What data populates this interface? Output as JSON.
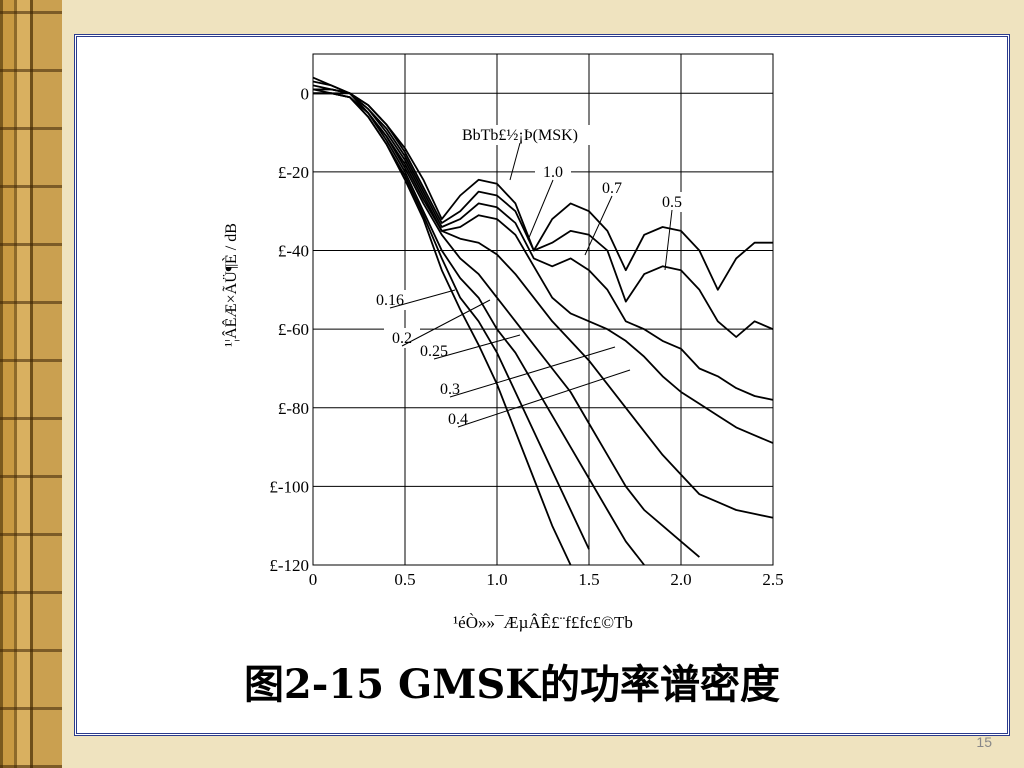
{
  "slide": {
    "caption": "图2-15 GMSK的功率谱密度",
    "page_number": "15"
  },
  "chart_data": {
    "type": "line",
    "y_label": "¹¦ÂÊÆ×ÃÜ¶È / dB",
    "x_label": "¹éÒ»»¯ÆµÂÊ£¨f£­fc£©Tb",
    "color": "#000000",
    "grid": true,
    "xlim": [
      0,
      2.5
    ],
    "ylim": [
      -120,
      10
    ],
    "xticks": [
      0,
      0.5,
      {
        "value": 1,
        "label": "1.0"
      },
      1.5,
      {
        "value": 2,
        "label": "2.0"
      },
      2.5
    ],
    "yticks": [
      0,
      {
        "value": -20,
        "label": "£-20"
      },
      {
        "value": -40,
        "label": "£-40"
      },
      {
        "value": -60,
        "label": "£-60"
      },
      {
        "value": -80,
        "label": "£-80"
      },
      {
        "value": -100,
        "label": "£-100"
      },
      {
        "value": -120,
        "label": "£-120"
      }
    ],
    "x": [
      0,
      0.1,
      0.2,
      0.3,
      0.4,
      0.5,
      0.6,
      0.7,
      0.8,
      0.9,
      1.0,
      1.1,
      1.2,
      1.3,
      1.4,
      1.5,
      1.6,
      1.7,
      1.8,
      1.9,
      2.0,
      2.1,
      2.2,
      2.3,
      2.4,
      2.5
    ],
    "series": [
      {
        "name": "BbTb£½¡Þ(MSK)",
        "values": [
          4,
          2,
          0,
          -3,
          -8,
          -14,
          -22,
          -32,
          -26,
          -22,
          -23,
          -28,
          -40,
          -32,
          -28,
          -30,
          -35,
          -45,
          -36,
          -34,
          -35,
          -40,
          -50,
          -42,
          -38,
          -38
        ]
      },
      {
        "name": "1.0",
        "values": [
          3,
          2,
          0,
          -3,
          -8,
          -15,
          -24,
          -33,
          -30,
          -25,
          -26,
          -30,
          -40,
          -38,
          -35,
          -36,
          -40,
          -53,
          -46,
          -44,
          -45,
          -50,
          -58,
          -62,
          -58,
          -60
        ]
      },
      {
        "name": "0.7",
        "values": [
          2,
          1,
          0,
          -4,
          -9,
          -16,
          -25,
          -34,
          -32,
          -28,
          -29,
          -33,
          -42,
          -44,
          -42,
          -45,
          -50,
          -58,
          -60,
          -63,
          -65,
          -70,
          -72,
          -75,
          -77,
          -78
        ]
      },
      {
        "name": "0.5",
        "values": [
          1,
          1,
          0,
          -4,
          -10,
          -17,
          -26,
          -35,
          -34,
          -31,
          -32,
          -36,
          -44,
          -52,
          -56,
          -58,
          -60,
          -63,
          -67,
          -72,
          -76,
          -79,
          -82,
          -85,
          -87,
          -89
        ]
      },
      {
        "name": "0.4",
        "values": [
          1,
          1,
          0,
          -5,
          -11,
          -18,
          -27,
          -35,
          -37,
          -38,
          -41,
          -46,
          -52,
          -58,
          -63,
          -68,
          -74,
          -80,
          -86,
          -92,
          -97,
          -102,
          -104,
          -106,
          -107,
          -108
        ]
      },
      {
        "name": "0.3",
        "values": [
          1,
          0,
          0,
          -5,
          -11,
          -19,
          -28,
          -36,
          -42,
          -46,
          -52,
          -58,
          -64,
          -70,
          -76,
          -84,
          -92,
          -100,
          -106,
          -110,
          -114,
          -118,
          null,
          null,
          null,
          null
        ]
      },
      {
        "name": "0.25",
        "values": [
          0,
          0,
          -1,
          -5,
          -12,
          -20,
          -30,
          -40,
          -47,
          -52,
          -60,
          -66,
          -74,
          -82,
          -90,
          -98,
          -106,
          -114,
          -120,
          null,
          null,
          null,
          null,
          null,
          null,
          null
        ]
      },
      {
        "name": "0.2",
        "values": [
          0,
          0,
          -1,
          -6,
          -13,
          -21,
          -31,
          -42,
          -52,
          -58,
          -66,
          -76,
          -86,
          -96,
          -106,
          -116,
          null,
          null,
          null,
          null,
          null,
          null,
          null,
          null,
          null,
          null
        ]
      },
      {
        "name": "0.16",
        "values": [
          0,
          0,
          -1,
          -6,
          -13,
          -22,
          -32,
          -45,
          -55,
          -64,
          -74,
          -86,
          -98,
          -110,
          -120,
          null,
          null,
          null,
          null,
          null,
          null,
          null,
          null,
          null,
          null,
          null
        ]
      }
    ]
  }
}
